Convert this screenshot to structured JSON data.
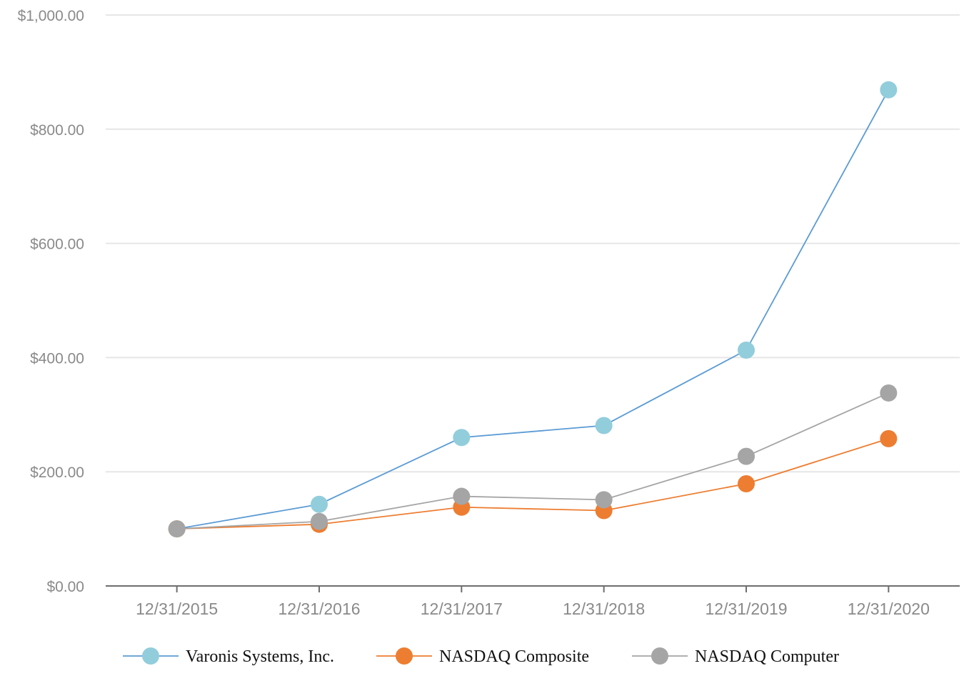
{
  "chart_data": {
    "type": "line",
    "title": "",
    "xlabel": "",
    "ylabel": "",
    "categories": [
      "12/31/2015",
      "12/31/2016",
      "12/31/2017",
      "12/31/2018",
      "12/31/2019",
      "12/31/2020"
    ],
    "ylim": [
      0,
      1000
    ],
    "yticks": [
      0,
      200,
      400,
      600,
      800,
      1000
    ],
    "ytick_labels": [
      "$0.00",
      "$200.00",
      "$400.00",
      "$600.00",
      "$800.00",
      "$1,000.00"
    ],
    "grid": "horizontal",
    "legend_position": "bottom",
    "series": [
      {
        "name": "Varonis Systems, Inc.",
        "values": [
          100,
          143,
          260,
          281,
          413,
          869
        ],
        "line_color": "#5b9bd5",
        "marker_color": "#92cddc"
      },
      {
        "name": "NASDAQ Composite",
        "values": [
          100,
          108,
          138,
          132,
          179,
          258
        ],
        "line_color": "#ed7d31",
        "marker_color": "#ed7d31"
      },
      {
        "name": "NASDAQ Computer",
        "values": [
          100,
          113,
          157,
          151,
          227,
          338
        ],
        "line_color": "#a5a5a5",
        "marker_color": "#a5a5a5"
      }
    ]
  }
}
